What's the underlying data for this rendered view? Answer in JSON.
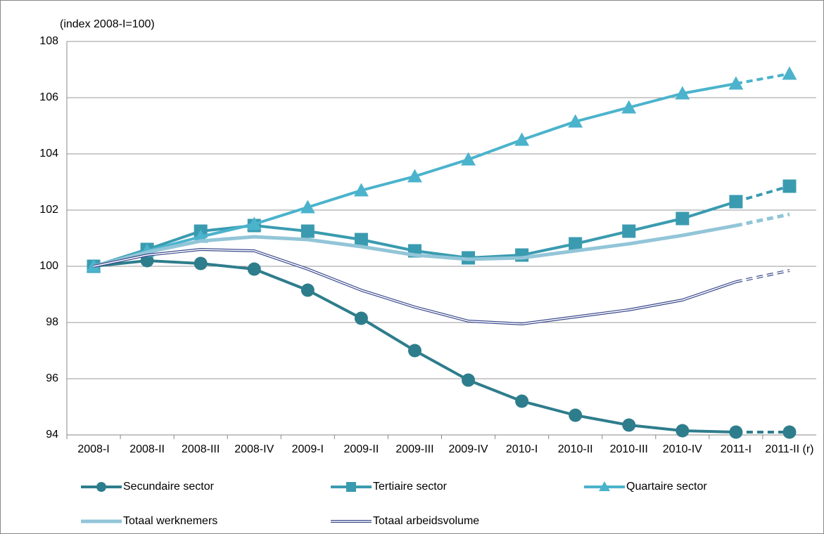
{
  "chart_data": {
    "type": "line",
    "y_axis_label": "(index 2008-I=100)",
    "categories": [
      "2008-I",
      "2008-II",
      "2008-III",
      "2008-IV",
      "2009-I",
      "2009-II",
      "2009-III",
      "2009-IV",
      "2010-I",
      "2010-II",
      "2010-III",
      "2010-IV",
      "2011-I",
      "2011-II (r)"
    ],
    "series": [
      {
        "name": "Secundaire sector",
        "color": "#2e7d8c",
        "marker": "circle",
        "values": [
          100,
          100.2,
          100.1,
          99.9,
          99.15,
          98.15,
          97.0,
          95.95,
          95.2,
          94.7,
          94.35,
          94.15,
          94.1,
          94.1
        ]
      },
      {
        "name": "Tertiaire sector",
        "color": "#3a9bb0",
        "marker": "square",
        "values": [
          100,
          100.6,
          101.25,
          101.45,
          101.25,
          100.95,
          100.55,
          100.3,
          100.4,
          100.8,
          101.25,
          101.7,
          102.3,
          102.85
        ]
      },
      {
        "name": "Quartaire sector",
        "color": "#4bb3cc",
        "marker": "triangle",
        "values": [
          100,
          100.55,
          101.05,
          101.5,
          102.1,
          102.7,
          103.2,
          103.8,
          104.5,
          105.15,
          105.65,
          106.15,
          106.5,
          106.85
        ]
      },
      {
        "name": "Totaal werknemers",
        "color": "#92c5d8",
        "marker": "none",
        "values": [
          100,
          100.5,
          100.9,
          101.05,
          100.95,
          100.7,
          100.4,
          100.25,
          100.3,
          100.55,
          100.8,
          101.1,
          101.45,
          101.85
        ]
      },
      {
        "name": "Totaal arbeidsvolume",
        "color": "#3b4a8c",
        "marker": "double-line",
        "values": [
          100,
          100.4,
          100.6,
          100.55,
          99.9,
          99.15,
          98.55,
          98.05,
          97.95,
          98.2,
          98.45,
          98.8,
          99.45,
          99.85
        ]
      }
    ],
    "ylim": [
      94,
      108
    ],
    "yticks": [
      94,
      96,
      98,
      100,
      102,
      104,
      106,
      108
    ],
    "grid": true,
    "dashed_last_segment": true,
    "legend": "bottom"
  }
}
